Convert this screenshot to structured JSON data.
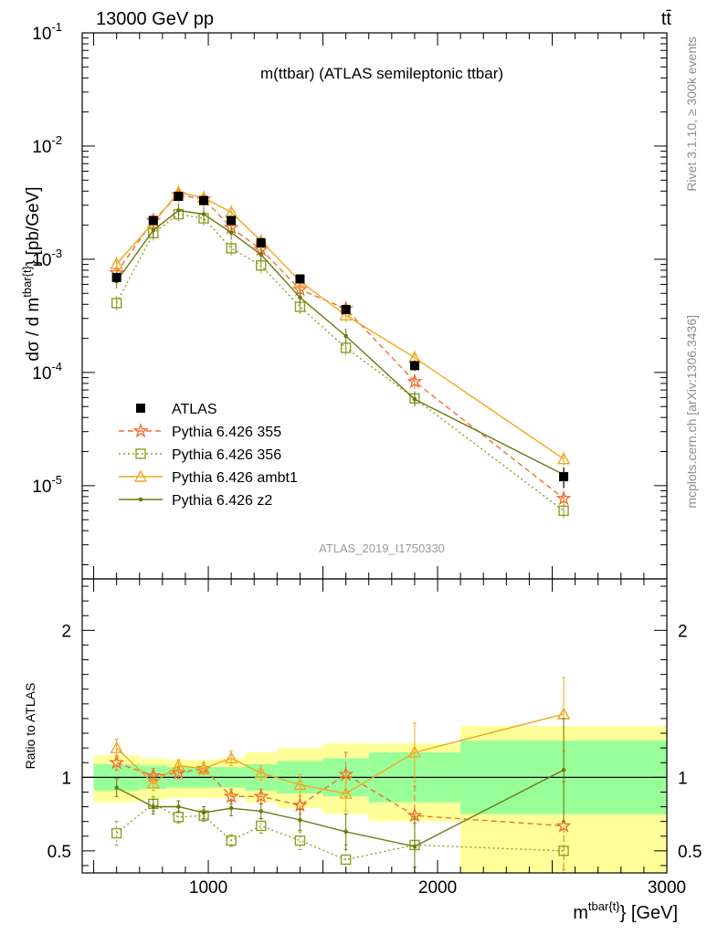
{
  "header": {
    "energy_label": "13000 GeV pp",
    "process_label": "tt̄"
  },
  "side_labels": {
    "rivet": "Rivet 3.1.10, ≥ 300k events",
    "source": "mcplots.cern.ch [arXiv:1306.3436]"
  },
  "chart_data": [
    {
      "type": "line",
      "panel": "main",
      "title": "m(ttbar) (ATLAS semileptonic ttbar)",
      "watermark": "ATLAS_2019_I1750330",
      "ylabel_parts": [
        "dσ / d m",
        "tbar{t}",
        "} [pb/GeV]"
      ],
      "yscale": "log",
      "ylim": [
        1.5e-06,
        0.1
      ],
      "xlim": [
        450,
        3000
      ],
      "yticks": [
        {
          "value": 1e-05,
          "base": "10",
          "exp": "-5"
        },
        {
          "value": 0.0001,
          "base": "10",
          "exp": "-4"
        },
        {
          "value": 0.001,
          "base": "10",
          "exp": "-3"
        },
        {
          "value": 0.01,
          "base": "10",
          "exp": "-2"
        },
        {
          "value": 0.1,
          "base": "10",
          "exp": "-1"
        }
      ],
      "legend_position": "lower-left",
      "bins": [
        [
          500,
          700
        ],
        [
          700,
          820
        ],
        [
          820,
          920
        ],
        [
          920,
          1040
        ],
        [
          1040,
          1160
        ],
        [
          1160,
          1300
        ],
        [
          1300,
          1500
        ],
        [
          1500,
          1700
        ],
        [
          1700,
          2100
        ],
        [
          2100,
          3000
        ]
      ],
      "x": [
        600,
        760,
        870,
        980,
        1100,
        1230,
        1400,
        1600,
        1900,
        2550
      ],
      "data": {
        "name": "ATLAS",
        "values": [
          0.00069,
          0.0022,
          0.0036,
          0.0033,
          0.0022,
          0.0014,
          0.00067,
          0.00036,
          0.000115,
          1.2e-05
        ],
        "errors": [
          7e-05,
          0.00018,
          0.00025,
          0.00023,
          0.00015,
          0.0001,
          5e-05,
          3e-05,
          1.2e-05,
          2.5e-06
        ]
      },
      "series": [
        {
          "name": "Pythia 6.426 355",
          "color": "#f07030",
          "dash": "6,4",
          "marker": "star",
          "values": [
            0.00076,
            0.0022,
            0.0037,
            0.0034,
            0.0019,
            0.00122,
            0.00054,
            0.000365,
            8.3e-05,
            7.7e-06
          ]
        },
        {
          "name": "Pythia 6.426 356",
          "color": "#8aa020",
          "dash": "2,3",
          "marker": "square",
          "values": [
            0.00041,
            0.0017,
            0.0025,
            0.0023,
            0.00125,
            0.00088,
            0.00038,
            0.000165,
            5.9e-05,
            6e-06
          ]
        },
        {
          "name": "Pythia 6.426 ambt1",
          "color": "#f0a820",
          "dash": "",
          "marker": "triangle",
          "values": [
            0.00091,
            0.0021,
            0.0039,
            0.0035,
            0.0026,
            0.00145,
            0.00064,
            0.00032,
            0.000135,
            1.72e-05
          ]
        },
        {
          "name": "Pythia 6.426 z2",
          "color": "#6a7a10",
          "dash": "",
          "marker": "dot",
          "values": [
            0.00064,
            0.0018,
            0.0027,
            0.0025,
            0.00172,
            0.0011,
            0.00046,
            0.00021,
            5.8e-05,
            1.25e-05
          ]
        }
      ]
    },
    {
      "type": "line",
      "panel": "ratio",
      "ylabel": "Ratio to ATLAS",
      "xlabel_parts": [
        "m",
        "tbar{t}",
        "} [GeV]"
      ],
      "ylim": [
        0.35,
        2.35
      ],
      "xlim": [
        450,
        3000
      ],
      "yticks": [
        0.5,
        1,
        2
      ],
      "ytick_labels": [
        "0.5",
        "1",
        "2"
      ],
      "xticks": [
        1000,
        2000,
        3000
      ],
      "xtick_labels": [
        "1000",
        "2000",
        "3000"
      ],
      "band_1sigma": [
        [
          0.91,
          1.09
        ],
        [
          0.92,
          1.08
        ],
        [
          0.93,
          1.07
        ],
        [
          0.93,
          1.07
        ],
        [
          0.93,
          1.07
        ],
        [
          0.91,
          1.09
        ],
        [
          0.89,
          1.11
        ],
        [
          0.87,
          1.13
        ],
        [
          0.83,
          1.17
        ],
        [
          0.75,
          1.25
        ]
      ],
      "band_2sigma": [
        [
          0.83,
          1.15
        ],
        [
          0.85,
          1.13
        ],
        [
          0.86,
          1.12
        ],
        [
          0.86,
          1.12
        ],
        [
          0.86,
          1.13
        ],
        [
          0.83,
          1.17
        ],
        [
          0.79,
          1.2
        ],
        [
          0.75,
          1.23
        ],
        [
          0.7,
          1.23
        ],
        [
          0.35,
          1.35
        ]
      ],
      "series": [
        {
          "name": "Pythia 6.426 355",
          "values": [
            1.1,
            1.01,
            1.03,
            1.06,
            0.87,
            0.87,
            0.81,
            1.02,
            0.74,
            0.67
          ],
          "errors": [
            0.05,
            0.05,
            0.04,
            0.04,
            0.05,
            0.05,
            0.06,
            0.15,
            0.2,
            0.3
          ]
        },
        {
          "name": "Pythia 6.426 356",
          "values": [
            0.62,
            0.82,
            0.73,
            0.74,
            0.57,
            0.67,
            0.57,
            0.44,
            0.54,
            0.5
          ],
          "errors": [
            0.08,
            0.05,
            0.04,
            0.04,
            0.04,
            0.05,
            0.06,
            0.1,
            0.15,
            0.2
          ]
        },
        {
          "name": "Pythia 6.426 ambt1",
          "values": [
            1.2,
            0.96,
            1.08,
            1.06,
            1.13,
            1.03,
            0.95,
            0.89,
            1.17,
            1.43
          ],
          "errors": [
            0.06,
            0.05,
            0.04,
            0.04,
            0.05,
            0.05,
            0.07,
            0.12,
            0.2,
            0.25
          ]
        },
        {
          "name": "Pythia 6.426 z2",
          "values": [
            0.93,
            0.8,
            0.8,
            0.76,
            0.79,
            0.77,
            0.71,
            0.63,
            0.53,
            1.05
          ],
          "errors": [
            0.06,
            0.05,
            0.04,
            0.04,
            0.05,
            0.05,
            0.07,
            0.12,
            0.2,
            0.35
          ]
        }
      ]
    }
  ]
}
